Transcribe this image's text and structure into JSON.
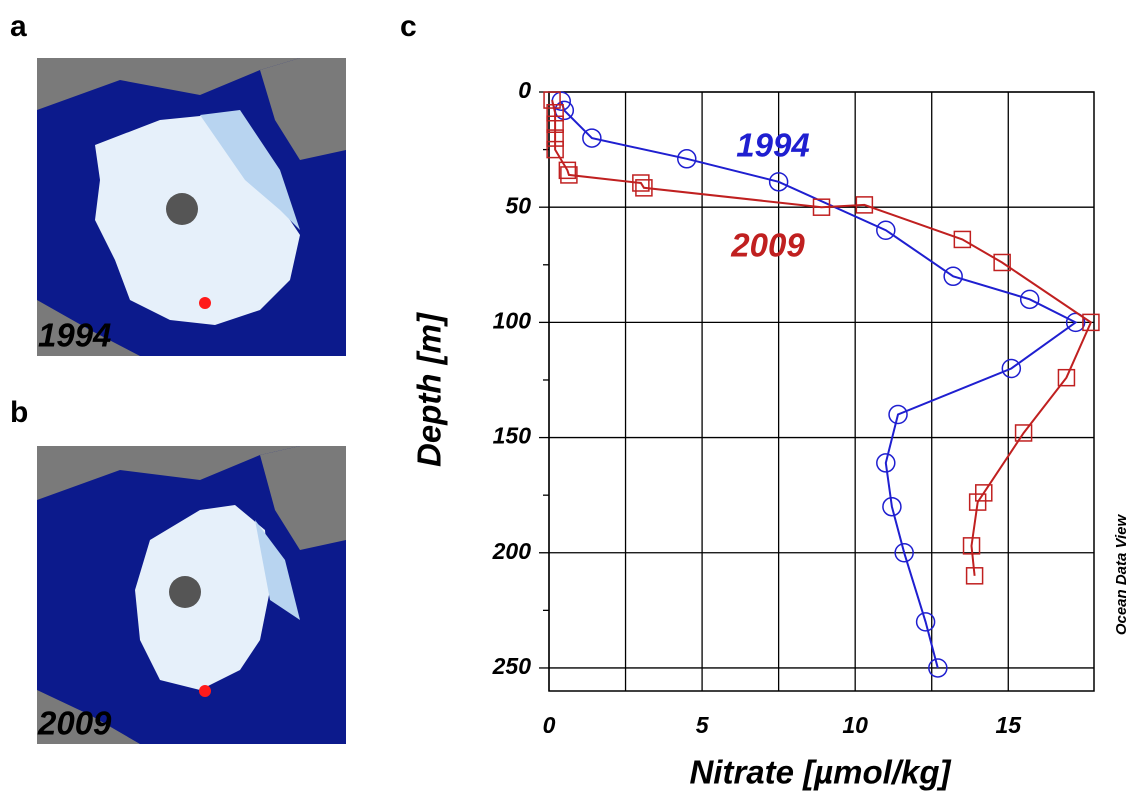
{
  "maps": [
    {
      "panel": "a",
      "year": "1994"
    },
    {
      "panel": "b",
      "year": "2009"
    }
  ],
  "chart_data": {
    "type": "line",
    "panel": "c",
    "xlabel": "Nitrate [µmol/kg]",
    "ylabel": "Depth [m]",
    "credit": "Ocean Data View",
    "xlim": [
      0,
      17.8
    ],
    "ylim": [
      0,
      260
    ],
    "y_inverted": true,
    "xticks": [
      0,
      5,
      10,
      15
    ],
    "yticks": [
      0,
      50,
      100,
      150,
      200,
      250
    ],
    "x_minor_grid": [
      2.5,
      7.5,
      12.5
    ],
    "y_minor_ticks": [
      25,
      75,
      125,
      175,
      225
    ],
    "grid": true,
    "series": [
      {
        "name": "1994",
        "color": "#1f1fd0",
        "marker": "circle",
        "x": [
          0.4,
          0.5,
          1.4,
          4.5,
          7.5,
          11,
          13.2,
          15.7,
          17.2,
          15.1,
          11.4,
          11,
          11.2,
          11.6,
          12.3,
          12.7
        ],
        "y": [
          4,
          8,
          20,
          29,
          39,
          60,
          80,
          90,
          100,
          120,
          140,
          161,
          180,
          200,
          230,
          250
        ]
      },
      {
        "name": "2009",
        "color": "#c02020",
        "marker": "square",
        "x": [
          0.1,
          0.2,
          0.2,
          0.2,
          0.2,
          0.6,
          0.65,
          3,
          3.1,
          8.9,
          10.3,
          13.5,
          14.8,
          17.7,
          16.9,
          15.5,
          14.2,
          14,
          13.8,
          13.9
        ],
        "y": [
          3.5,
          9,
          14,
          20,
          25,
          34,
          36,
          39.5,
          41.6,
          50,
          49,
          64,
          74,
          100,
          124,
          148,
          174,
          178,
          197,
          210
        ]
      }
    ]
  }
}
